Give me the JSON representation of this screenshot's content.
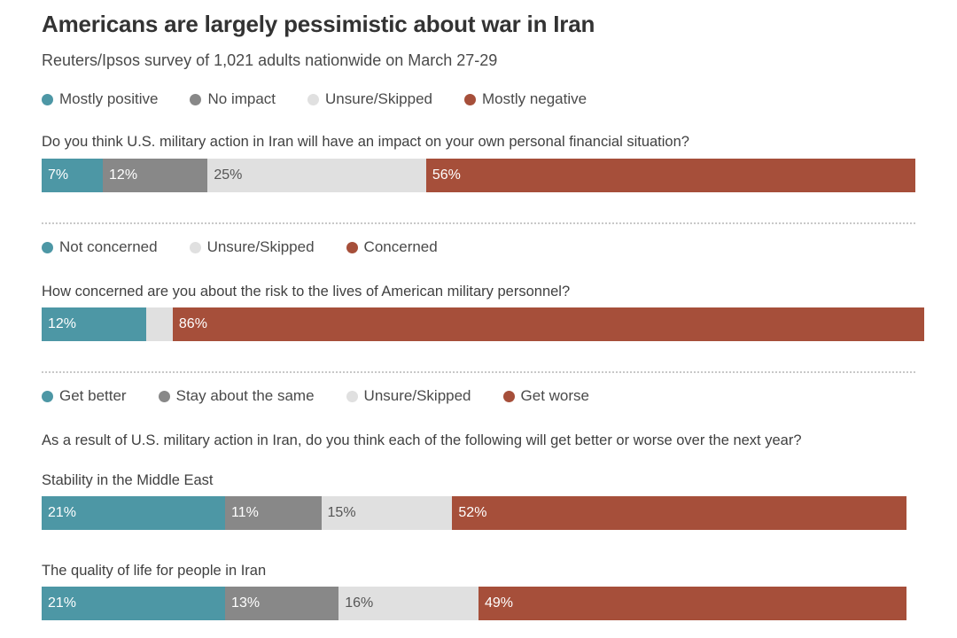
{
  "title": "Americans are largely pessimistic about war in Iran",
  "subtitle": "Reuters/Ipsos survey of 1,021 adults nationwide on March 27-29",
  "colors": {
    "positive": "#4d97a5",
    "neutral": "#888888",
    "unsure": "#e0e0e0",
    "negative": "#a64f3a"
  },
  "chart_data": [
    {
      "type": "bar",
      "orientation": "horizontal-stacked",
      "legend": [
        {
          "label": "Mostly positive",
          "color": "#4d97a5"
        },
        {
          "label": "No impact",
          "color": "#888888"
        },
        {
          "label": "Unsure/Skipped",
          "color": "#e0e0e0"
        },
        {
          "label": "Mostly negative",
          "color": "#a64f3a"
        }
      ],
      "question": "Do you think U.S. military action in Iran will have an impact on your own personal financial situation?",
      "rows": [
        {
          "category": "",
          "values": [
            7,
            12,
            25,
            56
          ],
          "labels": [
            "7%",
            "12%",
            "25%",
            "56%"
          ]
        }
      ]
    },
    {
      "type": "bar",
      "orientation": "horizontal-stacked",
      "legend": [
        {
          "label": "Not concerned",
          "color": "#4d97a5"
        },
        {
          "label": "Unsure/Skipped",
          "color": "#e0e0e0"
        },
        {
          "label": "Concerned",
          "color": "#a64f3a"
        }
      ],
      "question": "How concerned are you about the risk to the lives of American military personnel?",
      "rows": [
        {
          "category": "",
          "values": [
            12,
            3,
            86
          ],
          "labels": [
            "12%",
            "",
            "86%"
          ]
        }
      ]
    },
    {
      "type": "bar",
      "orientation": "horizontal-stacked",
      "legend": [
        {
          "label": "Get better",
          "color": "#4d97a5"
        },
        {
          "label": "Stay about the same",
          "color": "#888888"
        },
        {
          "label": "Unsure/Skipped",
          "color": "#e0e0e0"
        },
        {
          "label": "Get worse",
          "color": "#a64f3a"
        }
      ],
      "question": "As a result of U.S. military action in Iran, do you think each of the following will get better or worse over the next year?",
      "rows": [
        {
          "category": "Stability in the Middle East",
          "values": [
            21,
            11,
            15,
            52
          ],
          "labels": [
            "21%",
            "11%",
            "15%",
            "52%"
          ]
        },
        {
          "category": "The quality of life for people in Iran",
          "values": [
            21,
            13,
            16,
            49
          ],
          "labels": [
            "21%",
            "13%",
            "16%",
            "49%"
          ]
        }
      ]
    }
  ]
}
